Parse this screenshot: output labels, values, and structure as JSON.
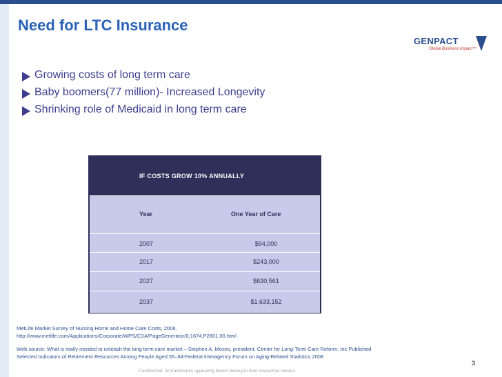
{
  "slide": {
    "title": "Need for LTC Insurance",
    "page_number": "3",
    "footer": "Confidential.  All trademarks appearing herein belong to their respective owners."
  },
  "logo": {
    "name": "GENPACT",
    "tagline": "Global Business Impact™",
    "brand_color": "#2a4f8f",
    "accent_color": "#c0352b"
  },
  "bullets": [
    "Growing costs of long term care",
    "Baby boomers(77 million)- Increased Longevity",
    "Shrinking role of Medicaid in long term care"
  ],
  "table": {
    "header": "IF COSTS GROW 10% ANNUALLY",
    "columns": [
      "Year",
      "One Year of Care"
    ],
    "rows": [
      [
        "2007",
        "$94,000"
      ],
      [
        "2017",
        "$243,000"
      ],
      [
        "2027",
        "$630,561"
      ],
      [
        "2037",
        "$1,633,152"
      ]
    ]
  },
  "sources": [
    "MetLife Market Survey of Nursing Home and Home Care Costs, 2006.",
    "http://www.metlife.com/Applications/Corporate/WPS/CDA/PageGenerator/0,1674,P2801,00.html",
    "Web source: What is really needed to unleash the long term care market – Stephen A. Moses, president, Center for Long-Term Care Reform, Inc Published",
    "Selected Indicators of Retirement Resources Among People Aged 55–64-Federal Interagency Forum on Aging-Related Statistics 2008"
  ]
}
